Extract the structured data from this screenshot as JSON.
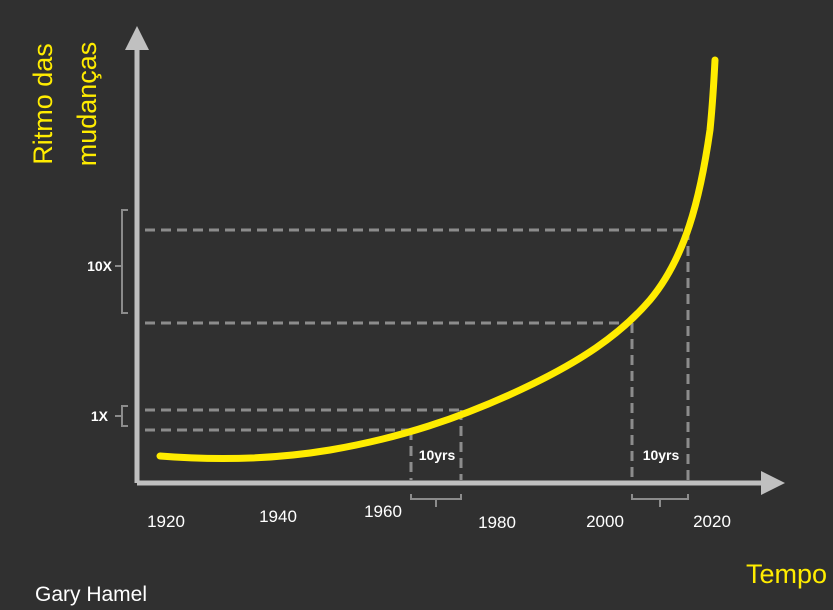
{
  "diagram": {
    "y_axis_title_line1": "Ritmo das",
    "y_axis_title_line2": "mudanças",
    "x_axis_title": "Tempo",
    "credit": "Gary Hamel",
    "x_tick_labels": [
      "1920",
      "1940",
      "1960",
      "1980",
      "2000",
      "2020"
    ],
    "y_bracket_labels": {
      "one_x": "1X",
      "ten_x": "10X"
    },
    "interval_labels": {
      "first": "10yrs",
      "second": "10yrs"
    },
    "curve_shape": "exponential growth",
    "colors": {
      "background": "#303030",
      "axis": "#c0c0c0",
      "curve": "#ffec00",
      "guides": "#8c8c8c",
      "title_text": "#ffec00",
      "label_text": "#ffffff"
    }
  }
}
